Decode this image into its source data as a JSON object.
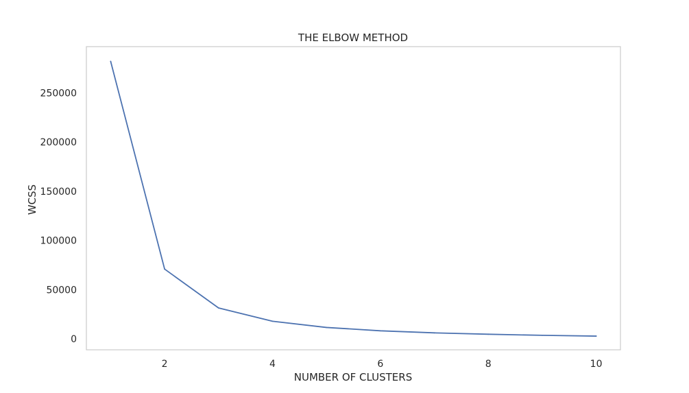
{
  "chart_data": {
    "type": "line",
    "title": "THE ELBOW METHOD",
    "xlabel": "NUMBER OF CLUSTERS",
    "ylabel": "WCSS",
    "x": [
      1,
      2,
      3,
      4,
      5,
      6,
      7,
      8,
      9,
      10
    ],
    "series": [
      {
        "values": [
          282000,
          71000,
          31500,
          18000,
          11700,
          8300,
          6200,
          4800,
          3700,
          2900
        ],
        "color": "#4c72b0"
      }
    ],
    "xlim": [
      0.55,
      10.45
    ],
    "ylim": [
      -11000,
      297000
    ],
    "x_ticks": [
      2,
      4,
      6,
      8,
      10
    ],
    "y_ticks": [
      0,
      50000,
      100000,
      150000,
      200000,
      250000
    ],
    "grid": false,
    "legend": "none"
  }
}
